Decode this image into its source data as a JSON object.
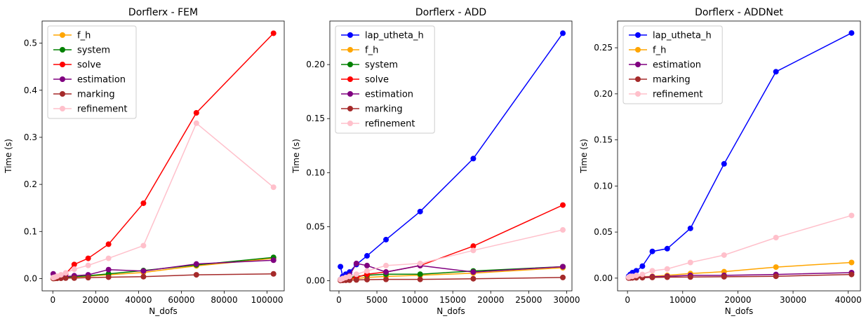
{
  "colors": {
    "lap_utheta_h": "#0000ff",
    "f_h": "#ffa500",
    "system": "#008000",
    "solve": "#ff0000",
    "estimation": "#800080",
    "marking": "#a52a2a",
    "refinement": "#ffc0cb"
  },
  "chart_data": [
    {
      "type": "line",
      "title": "Dorflerx - FEM",
      "xlabel": "N_dofs",
      "ylabel": "Time (s)",
      "xlim": [
        -5000,
        108000
      ],
      "ylim": [
        -0.0261,
        0.547
      ],
      "xticks": [
        0,
        20000,
        40000,
        60000,
        80000,
        100000
      ],
      "xtick_labels": [
        "0",
        "20000",
        "40000",
        "60000",
        "80000",
        "100000"
      ],
      "yticks": [
        0.0,
        0.1,
        0.2,
        0.3,
        0.4,
        0.5
      ],
      "ytick_labels": [
        "0.0",
        "0.1",
        "0.2",
        "0.3",
        "0.4",
        "0.5"
      ],
      "legend": "top-left",
      "x": [
        200,
        900,
        2000,
        3800,
        6000,
        10000,
        16500,
        26000,
        42300,
        67000,
        103000
      ],
      "series": [
        {
          "name": "f_h",
          "key": "f_h",
          "values": [
            0.0003,
            0.0005,
            0.0008,
            0.0012,
            0.002,
            0.003,
            0.005,
            0.008,
            0.013,
            0.027,
            0.043
          ]
        },
        {
          "name": "system",
          "key": "system",
          "values": [
            0.0005,
            0.0008,
            0.0012,
            0.002,
            0.003,
            0.004,
            0.006,
            0.01,
            0.017,
            0.029,
            0.045
          ]
        },
        {
          "name": "solve",
          "key": "solve",
          "values": [
            0.001,
            0.0015,
            0.003,
            0.005,
            0.01,
            0.03,
            0.043,
            0.073,
            0.16,
            0.352,
            0.521
          ]
        },
        {
          "name": "estimation",
          "key": "estimation",
          "values": [
            0.01,
            0.004,
            0.003,
            0.003,
            0.004,
            0.006,
            0.008,
            0.019,
            0.016,
            0.031,
            0.039
          ]
        },
        {
          "name": "marking",
          "key": "marking",
          "values": [
            0.0002,
            0.0003,
            0.0005,
            0.0007,
            0.001,
            0.001,
            0.002,
            0.003,
            0.004,
            0.008,
            0.01
          ]
        },
        {
          "name": "refinement",
          "key": "refinement",
          "values": [
            0.002,
            0.003,
            0.005,
            0.008,
            0.012,
            0.02,
            0.028,
            0.043,
            0.07,
            0.33,
            0.194
          ]
        }
      ]
    },
    {
      "type": "line",
      "title": "Dorflerx - ADD",
      "xlabel": "N_dofs",
      "ylabel": "Time (s)",
      "xlim": [
        -1200,
        30700
      ],
      "ylim": [
        -0.0094,
        0.2403
      ],
      "xticks": [
        0,
        5000,
        10000,
        15000,
        20000,
        25000,
        30000
      ],
      "xtick_labels": [
        "0",
        "5000",
        "10000",
        "15000",
        "20000",
        "25000",
        "30000"
      ],
      "yticks": [
        0.0,
        0.05,
        0.1,
        0.15,
        0.2
      ],
      "ytick_labels": [
        "0.00",
        "0.05",
        "0.10",
        "0.15",
        "0.20"
      ],
      "legend": "top-left",
      "x": [
        200,
        500,
        900,
        1400,
        2300,
        3700,
        6200,
        10700,
        17700,
        29500
      ],
      "series": [
        {
          "name": "lap_utheta_h",
          "key": "lap_utheta_h",
          "values": [
            0.013,
            0.004,
            0.006,
            0.008,
            0.015,
            0.023,
            0.038,
            0.064,
            0.113,
            0.229
          ]
        },
        {
          "name": "f_h",
          "key": "f_h",
          "values": [
            0.0005,
            0.001,
            0.001,
            0.0015,
            0.002,
            0.003,
            0.004,
            0.005,
            0.007,
            0.012
          ]
        },
        {
          "name": "system",
          "key": "system",
          "values": [
            0.001,
            0.0015,
            0.002,
            0.003,
            0.004,
            0.005,
            0.006,
            0.006,
            0.009,
            0.013
          ]
        },
        {
          "name": "solve",
          "key": "solve",
          "values": [
            0.0005,
            0.001,
            0.0015,
            0.002,
            0.003,
            0.006,
            0.008,
            0.014,
            0.032,
            0.07
          ]
        },
        {
          "name": "estimation",
          "key": "estimation",
          "values": [
            0.001,
            0.002,
            0.003,
            0.005,
            0.016,
            0.014,
            0.008,
            0.014,
            0.008,
            0.013
          ]
        },
        {
          "name": "marking",
          "key": "marking",
          "values": [
            0.0002,
            0.0003,
            0.0004,
            0.0005,
            0.0007,
            0.001,
            0.0012,
            0.0012,
            0.0018,
            0.003
          ]
        },
        {
          "name": "refinement",
          "key": "refinement",
          "values": [
            0.001,
            0.002,
            0.003,
            0.004,
            0.006,
            0.009,
            0.014,
            0.016,
            0.028,
            0.047
          ]
        }
      ]
    },
    {
      "type": "line",
      "title": "Dorflerx - ADDNet",
      "xlabel": "N_dofs",
      "ylabel": "Time (s)",
      "xlim": [
        -1800,
        42200
      ],
      "ylim": [
        -0.0138,
        0.279
      ],
      "xticks": [
        0,
        10000,
        20000,
        30000,
        40000
      ],
      "xtick_labels": [
        "0",
        "10000",
        "20000",
        "30000",
        "40000"
      ],
      "yticks": [
        0.0,
        0.05,
        0.1,
        0.15,
        0.2,
        0.25
      ],
      "ytick_labels": [
        "0.00",
        "0.05",
        "0.10",
        "0.15",
        "0.20",
        "0.25"
      ],
      "legend": "top-left",
      "x": [
        200,
        500,
        900,
        1600,
        2700,
        4500,
        7200,
        11400,
        17500,
        26900,
        40600
      ],
      "series": [
        {
          "name": "lap_utheta_h",
          "key": "lap_utheta_h",
          "values": [
            0.002,
            0.004,
            0.006,
            0.008,
            0.013,
            0.029,
            0.032,
            0.054,
            0.124,
            0.224,
            0.266
          ]
        },
        {
          "name": "f_h",
          "key": "f_h",
          "values": [
            0.0003,
            0.0005,
            0.0008,
            0.001,
            0.0015,
            0.002,
            0.003,
            0.005,
            0.007,
            0.012,
            0.017
          ]
        },
        {
          "name": "estimation",
          "key": "estimation",
          "values": [
            0.0002,
            0.0003,
            0.0005,
            0.0007,
            0.001,
            0.0015,
            0.002,
            0.003,
            0.003,
            0.004,
            0.006
          ]
        },
        {
          "name": "marking",
          "key": "marking",
          "values": [
            0.0001,
            0.0002,
            0.0003,
            0.0004,
            0.0005,
            0.0007,
            0.001,
            0.0012,
            0.0015,
            0.002,
            0.004
          ]
        },
        {
          "name": "refinement",
          "key": "refinement",
          "values": [
            0.001,
            0.002,
            0.002,
            0.003,
            0.004,
            0.008,
            0.01,
            0.017,
            0.025,
            0.044,
            0.068
          ]
        }
      ]
    }
  ]
}
